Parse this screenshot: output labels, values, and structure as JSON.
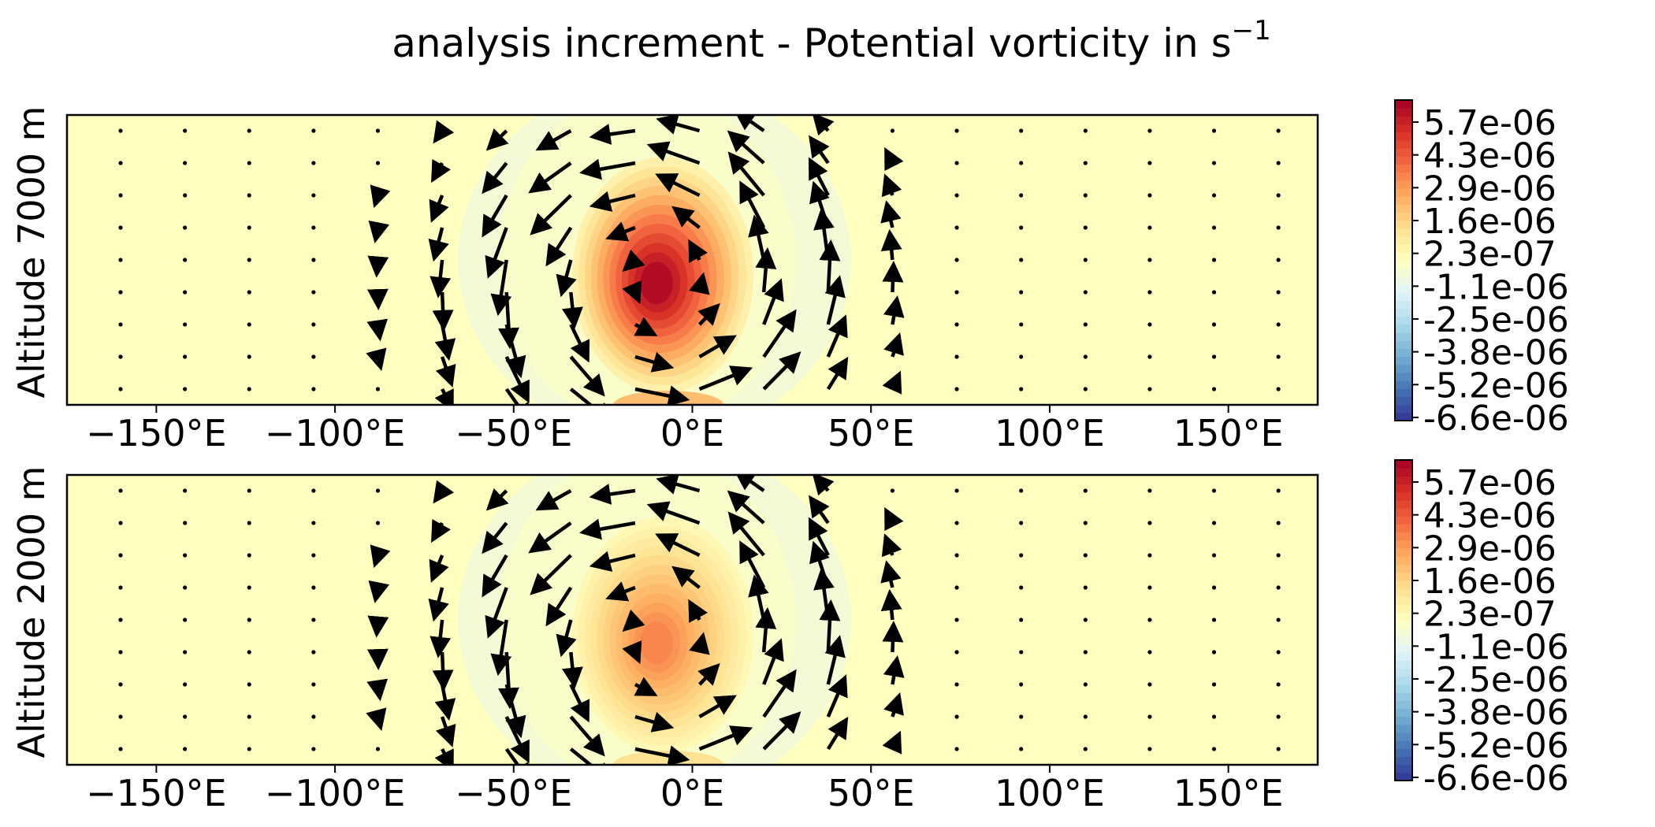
{
  "figure": {
    "title_main": "analysis increment - Potential vorticity in s",
    "title_sup": "−1"
  },
  "colormap": {
    "name": "RdYlBu_r",
    "stops": [
      "#313695",
      "#4575b4",
      "#74add1",
      "#abd9e9",
      "#e0f3f8",
      "#ffffbf",
      "#fee090",
      "#fdae61",
      "#f46d43",
      "#d73027",
      "#a50026"
    ],
    "range": [
      -6.6e-06,
      6.6e-06
    ]
  },
  "chart_data": [
    {
      "type": "heatmap",
      "title": "",
      "ylabel": "Altitude 7000 m",
      "xlabel": "",
      "xlim": [
        -175,
        175
      ],
      "xticks": [
        -150,
        -100,
        -50,
        0,
        50,
        100,
        150
      ],
      "xtick_labels": [
        "−150°E",
        "−100°E",
        "−50°E",
        "0°E",
        "50°E",
        "100°E",
        "150°E"
      ],
      "yticks_shown": false,
      "field": {
        "background": 0.0,
        "vortex_center_lon": -10,
        "vortex_center_frac": 0.58,
        "peak_value": 6.3e-06,
        "ring_value": -1e-06,
        "lon_range": [
          -70,
          40
        ]
      },
      "colorbar": {
        "ticks": [
          "5.7e-06",
          "4.3e-06",
          "2.9e-06",
          "1.6e-06",
          "2.3e-07",
          "-1.1e-06",
          "-2.5e-06",
          "-3.8e-06",
          "-5.2e-06",
          "-6.6e-06"
        ]
      },
      "wind_arrows": {
        "grid_lon": [
          -160,
          -142,
          -124,
          -106,
          -88,
          -70,
          -52,
          -34,
          -16,
          2,
          20,
          38,
          56,
          74,
          92,
          110,
          128,
          146,
          164
        ],
        "rows": 9,
        "vortex_center_lon": -10,
        "vortex_radius_lon": 40,
        "rotation": "counterclockwise",
        "max_speed": 1.0
      }
    },
    {
      "type": "heatmap",
      "title": "",
      "ylabel": "Altitude 2000 m",
      "xlabel": "",
      "xlim": [
        -175,
        175
      ],
      "xticks": [
        -150,
        -100,
        -50,
        0,
        50,
        100,
        150
      ],
      "xtick_labels": [
        "−150°E",
        "−100°E",
        "−50°E",
        "0°E",
        "50°E",
        "100°E",
        "150°E"
      ],
      "yticks_shown": false,
      "field": {
        "background": 0.0,
        "vortex_center_lon": -10,
        "vortex_center_frac": 0.58,
        "peak_value": 3.5e-06,
        "ring_value": -1e-06,
        "lon_range": [
          -70,
          40
        ]
      },
      "colorbar": {
        "ticks": [
          "5.7e-06",
          "4.3e-06",
          "2.9e-06",
          "1.6e-06",
          "2.3e-07",
          "-1.1e-06",
          "-2.5e-06",
          "-3.8e-06",
          "-5.2e-06",
          "-6.6e-06"
        ]
      },
      "wind_arrows": {
        "grid_lon": [
          -160,
          -142,
          -124,
          -106,
          -88,
          -70,
          -52,
          -34,
          -16,
          2,
          20,
          38,
          56,
          74,
          92,
          110,
          128,
          146,
          164
        ],
        "rows": 9,
        "vortex_center_lon": -10,
        "vortex_radius_lon": 40,
        "rotation": "counterclockwise",
        "max_speed": 1.0
      }
    }
  ]
}
